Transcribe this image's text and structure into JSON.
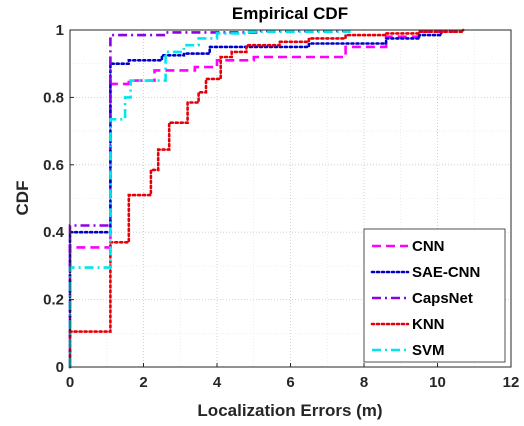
{
  "chart_data": {
    "type": "line",
    "title": "Empirical CDF",
    "xlabel": "Localization Errors (m)",
    "ylabel": "CDF",
    "xlim": [
      0,
      12
    ],
    "ylim": [
      0,
      1
    ],
    "xticks": [
      0,
      2,
      4,
      6,
      8,
      10,
      12
    ],
    "yticks": [
      0,
      0.2,
      0.4,
      0.6,
      0.8,
      1
    ],
    "xtick_labels": [
      "0",
      "2",
      "4",
      "6",
      "8",
      "10",
      "12"
    ],
    "ytick_labels": [
      "0",
      "0.2",
      "0.4",
      "0.6",
      "0.8",
      "1"
    ],
    "grid": true,
    "legend_position": "bottom-right",
    "series": [
      {
        "name": "CNN",
        "color": "#ff00ff",
        "dash": "dashed",
        "points": [
          [
            0,
            0
          ],
          [
            0,
            0.355
          ],
          [
            1.1,
            0.355
          ],
          [
            1.1,
            0.84
          ],
          [
            1.6,
            0.84
          ],
          [
            1.6,
            0.85
          ],
          [
            2.3,
            0.85
          ],
          [
            2.3,
            0.88
          ],
          [
            3.4,
            0.88
          ],
          [
            3.4,
            0.89
          ],
          [
            4,
            0.89
          ],
          [
            4,
            0.91
          ],
          [
            5,
            0.91
          ],
          [
            5,
            0.92
          ],
          [
            7.5,
            0.92
          ],
          [
            7.5,
            0.95
          ],
          [
            8.6,
            0.95
          ],
          [
            8.6,
            0.98
          ],
          [
            9.5,
            0.98
          ],
          [
            9.5,
            0.995
          ],
          [
            10.6,
            0.995
          ],
          [
            10.6,
            1
          ]
        ]
      },
      {
        "name": "SAE-CNN",
        "color": "#0000cc",
        "dash": "dotted",
        "points": [
          [
            0,
            0
          ],
          [
            0,
            0.4
          ],
          [
            1.1,
            0.4
          ],
          [
            1.1,
            0.9
          ],
          [
            1.6,
            0.9
          ],
          [
            1.6,
            0.91
          ],
          [
            2.5,
            0.91
          ],
          [
            2.5,
            0.925
          ],
          [
            3.1,
            0.925
          ],
          [
            3.1,
            0.93
          ],
          [
            3.8,
            0.93
          ],
          [
            3.8,
            0.95
          ],
          [
            6.5,
            0.95
          ],
          [
            6.5,
            0.96
          ],
          [
            8.6,
            0.96
          ],
          [
            8.6,
            0.975
          ],
          [
            9.5,
            0.975
          ],
          [
            9.5,
            0.985
          ],
          [
            10.1,
            0.985
          ],
          [
            10.1,
            1
          ]
        ]
      },
      {
        "name": "CapsNet",
        "color": "#8f00e6",
        "dash": "dashdot",
        "points": [
          [
            0,
            0
          ],
          [
            0,
            0.42
          ],
          [
            1.1,
            0.42
          ],
          [
            1.1,
            0.985
          ],
          [
            2.6,
            0.985
          ],
          [
            2.6,
            0.993
          ],
          [
            5.2,
            0.993
          ],
          [
            5.2,
            0.997
          ],
          [
            7.5,
            0.997
          ],
          [
            7.5,
            1
          ]
        ]
      },
      {
        "name": "KNN",
        "color": "#e6000a",
        "dash": "dotted",
        "points": [
          [
            0,
            0
          ],
          [
            0,
            0.105
          ],
          [
            1.1,
            0.105
          ],
          [
            1.1,
            0.37
          ],
          [
            1.6,
            0.37
          ],
          [
            1.6,
            0.51
          ],
          [
            2.2,
            0.51
          ],
          [
            2.2,
            0.585
          ],
          [
            2.4,
            0.585
          ],
          [
            2.4,
            0.645
          ],
          [
            2.7,
            0.645
          ],
          [
            2.7,
            0.725
          ],
          [
            3.2,
            0.725
          ],
          [
            3.2,
            0.785
          ],
          [
            3.5,
            0.785
          ],
          [
            3.5,
            0.815
          ],
          [
            3.7,
            0.815
          ],
          [
            3.7,
            0.855
          ],
          [
            4.1,
            0.855
          ],
          [
            4.1,
            0.92
          ],
          [
            4.4,
            0.92
          ],
          [
            4.4,
            0.935
          ],
          [
            4.8,
            0.935
          ],
          [
            4.8,
            0.955
          ],
          [
            5.7,
            0.955
          ],
          [
            5.7,
            0.965
          ],
          [
            6.5,
            0.965
          ],
          [
            6.5,
            0.975
          ],
          [
            7.5,
            0.975
          ],
          [
            7.5,
            0.985
          ],
          [
            8.6,
            0.985
          ],
          [
            8.6,
            0.99
          ],
          [
            9.5,
            0.99
          ],
          [
            9.5,
            0.995
          ],
          [
            10.7,
            0.995
          ],
          [
            10.7,
            1
          ]
        ]
      },
      {
        "name": "SVM",
        "color": "#00e5ee",
        "dash": "dashdot",
        "points": [
          [
            0,
            0
          ],
          [
            0,
            0.295
          ],
          [
            1.1,
            0.295
          ],
          [
            1.1,
            0.735
          ],
          [
            1.5,
            0.735
          ],
          [
            1.5,
            0.8
          ],
          [
            1.65,
            0.8
          ],
          [
            1.65,
            0.85
          ],
          [
            2.6,
            0.85
          ],
          [
            2.6,
            0.935
          ],
          [
            3.1,
            0.935
          ],
          [
            3.1,
            0.955
          ],
          [
            3.5,
            0.955
          ],
          [
            3.5,
            0.975
          ],
          [
            4,
            0.975
          ],
          [
            4,
            0.99
          ],
          [
            4.8,
            0.99
          ],
          [
            4.8,
            0.995
          ],
          [
            7.6,
            0.995
          ],
          [
            7.6,
            1
          ]
        ]
      }
    ]
  }
}
